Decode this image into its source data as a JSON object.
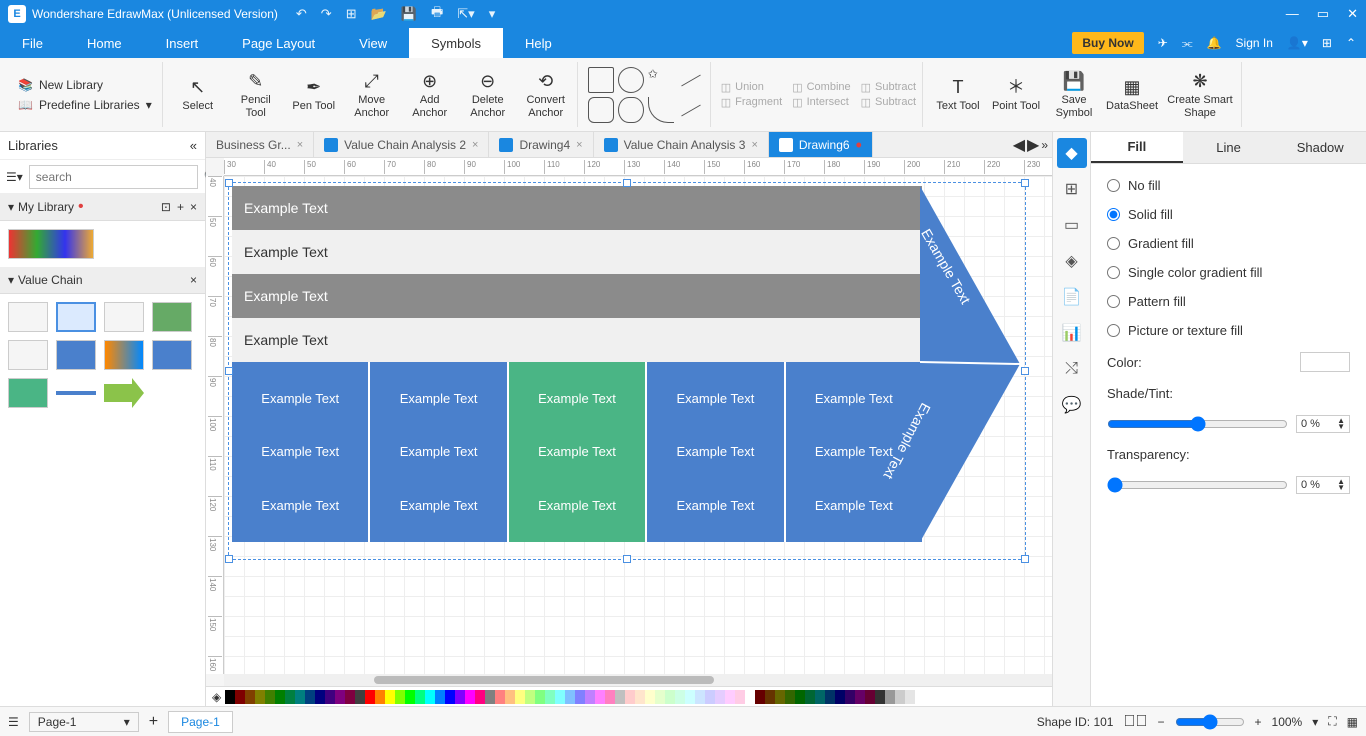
{
  "titlebar": {
    "app_title": "Wondershare EdrawMax (Unlicensed Version)"
  },
  "menubar": {
    "items": [
      "File",
      "Home",
      "Insert",
      "Page Layout",
      "View",
      "Symbols",
      "Help"
    ],
    "active_index": 5,
    "buy_now": "Buy Now",
    "sign_in": "Sign In"
  },
  "ribbon": {
    "new_library": "New Library",
    "predefine_libraries": "Predefine Libraries",
    "tools": [
      {
        "label": "Select"
      },
      {
        "label": "Pencil Tool"
      },
      {
        "label": "Pen Tool"
      },
      {
        "label": "Move Anchor"
      },
      {
        "label": "Add Anchor"
      },
      {
        "label": "Delete Anchor"
      },
      {
        "label": "Convert Anchor"
      }
    ],
    "bools": [
      "Union",
      "Combine",
      "Subtract",
      "Fragment",
      "Intersect",
      "Subtract"
    ],
    "right_tools": [
      "Text Tool",
      "Point Tool",
      "Save Symbol",
      "DataSheet",
      "Create Smart Shape"
    ]
  },
  "left": {
    "title": "Libraries",
    "search_placeholder": "search",
    "my_library": "My Library",
    "value_chain": "Value Chain"
  },
  "tabs": [
    {
      "label": "Business Gr...",
      "active": false,
      "unsaved": false
    },
    {
      "label": "Value Chain Analysis 2",
      "active": false,
      "unsaved": false
    },
    {
      "label": "Drawing4",
      "active": false,
      "unsaved": false
    },
    {
      "label": "Value Chain Analysis 3",
      "active": false,
      "unsaved": false
    },
    {
      "label": "Drawing6",
      "active": true,
      "unsaved": true
    }
  ],
  "ruler_h": [
    30,
    40,
    50,
    60,
    70,
    80,
    90,
    100,
    110,
    120,
    130,
    140,
    150,
    160,
    170,
    180,
    190,
    200,
    210,
    220,
    230
  ],
  "ruler_v": [
    40,
    50,
    60,
    70,
    80,
    90,
    100,
    110,
    120,
    130,
    140,
    150,
    160
  ],
  "diagram": {
    "support_rows": [
      "Example Text",
      "Example Text",
      "Example Text",
      "Example Text"
    ],
    "primary_cells": "Example Text",
    "margin_text": "Example Text",
    "colors": {
      "blue": "#4a80cc",
      "green": "#4ab585",
      "grey": "#8b8b8b",
      "lightgrey": "#f0f0f0"
    }
  },
  "rightpanel": {
    "tabs": [
      "Fill",
      "Line",
      "Shadow"
    ],
    "active_tab": 0,
    "options": [
      "No fill",
      "Solid fill",
      "Gradient fill",
      "Single color gradient fill",
      "Pattern fill",
      "Picture or texture fill"
    ],
    "selected_option": 1,
    "color_label": "Color:",
    "shade_label": "Shade/Tint:",
    "shade_value": "0 %",
    "transparency_label": "Transparency:",
    "transparency_value": "0 %"
  },
  "statusbar": {
    "page_sel": "Page-1",
    "page_tab": "Page-1",
    "shape_id": "Shape ID: 101",
    "zoom": "100%"
  },
  "palette": [
    "#000000",
    "#7f0000",
    "#804000",
    "#808000",
    "#407f00",
    "#007f00",
    "#007f40",
    "#007f7f",
    "#00407f",
    "#00007f",
    "#40007f",
    "#7f007f",
    "#7f0040",
    "#404040",
    "#ff0000",
    "#ff8000",
    "#ffff00",
    "#80ff00",
    "#00ff00",
    "#00ff80",
    "#00ffff",
    "#0080ff",
    "#0000ff",
    "#8000ff",
    "#ff00ff",
    "#ff0080",
    "#808080",
    "#ff8080",
    "#ffc080",
    "#ffff80",
    "#c0ff80",
    "#80ff80",
    "#80ffc0",
    "#80ffff",
    "#80c0ff",
    "#8080ff",
    "#c080ff",
    "#ff80ff",
    "#ff80c0",
    "#c0c0c0",
    "#ffcccc",
    "#ffe5cc",
    "#ffffcc",
    "#e5ffcc",
    "#ccffcc",
    "#ccffe5",
    "#ccffff",
    "#cce5ff",
    "#ccccff",
    "#e5ccff",
    "#ffccff",
    "#ffcce5",
    "#ffffff",
    "#660000",
    "#663300",
    "#666600",
    "#336600",
    "#006600",
    "#006633",
    "#006666",
    "#003366",
    "#000066",
    "#330066",
    "#660066",
    "#660033",
    "#333333",
    "#999999",
    "#cccccc",
    "#e5e5e5"
  ]
}
